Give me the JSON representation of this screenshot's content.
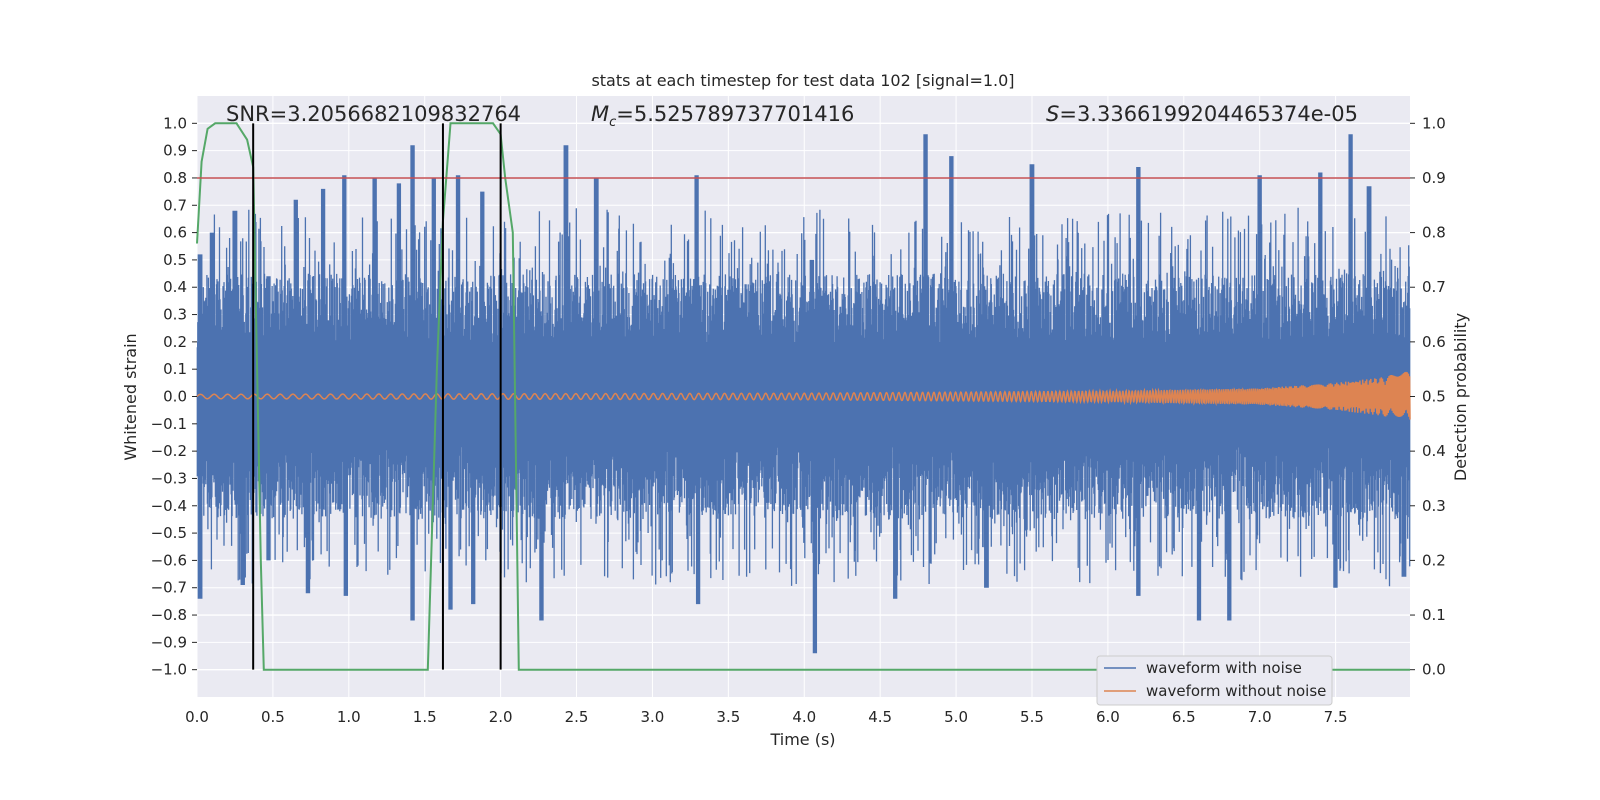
{
  "chart_data": {
    "type": "line",
    "title": "stats at each timestep for test data 102 [signal=1.0]",
    "xlabel": "Time (s)",
    "ylabel": "Whitened strain",
    "y2label": "Detection probability",
    "xlim": [
      0.0,
      7.99
    ],
    "ylim": [
      -1.1,
      1.1
    ],
    "y2lim": [
      -0.05,
      1.05
    ],
    "xticks": [
      "0.0",
      "0.5",
      "1.0",
      "1.5",
      "2.0",
      "2.5",
      "3.0",
      "3.5",
      "4.0",
      "4.5",
      "5.0",
      "5.5",
      "6.0",
      "6.5",
      "7.0",
      "7.5"
    ],
    "yticks": [
      "1.0",
      "0.9",
      "0.8",
      "0.7",
      "0.6",
      "0.5",
      "0.4",
      "0.3",
      "0.2",
      "0.1",
      "0.0",
      "−0.1",
      "−0.2",
      "−0.3",
      "−0.4",
      "−0.5",
      "−0.6",
      "−0.7",
      "−0.8",
      "−0.9",
      "−1.0"
    ],
    "y2ticks": [
      "1.0",
      "0.9",
      "0.8",
      "0.7",
      "0.6",
      "0.5",
      "0.4",
      "0.3",
      "0.2",
      "0.1",
      "0.0"
    ],
    "grid": true,
    "legend_position": "lower-right",
    "annotations": {
      "snr": "SNR=3.2056682109832764",
      "mc_symbol": "M",
      "mc_sub": "c",
      "mc_value": "=5.525789737701416",
      "s_symbol": "S",
      "s_value": "=3.3366199204465374e-05"
    },
    "series": [
      {
        "name": "waveform with noise",
        "color": "#4c72b0",
        "noise_envelope": {
          "t": [
            0.0,
            8.0
          ],
          "upper_typical": 0.45,
          "lower_typical": -0.45
        },
        "peaks_upper": [
          [
            0.02,
            0.52
          ],
          [
            0.1,
            0.6
          ],
          [
            0.25,
            0.68
          ],
          [
            0.47,
            0.44
          ],
          [
            0.65,
            0.72
          ],
          [
            0.83,
            0.76
          ],
          [
            0.97,
            0.81
          ],
          [
            1.17,
            0.8
          ],
          [
            1.33,
            0.78
          ],
          [
            1.42,
            0.92
          ],
          [
            1.56,
            0.8
          ],
          [
            1.72,
            0.81
          ],
          [
            1.88,
            0.75
          ],
          [
            2.43,
            0.92
          ],
          [
            2.63,
            0.8
          ],
          [
            3.29,
            0.81
          ],
          [
            4.05,
            0.5
          ],
          [
            4.8,
            0.96
          ],
          [
            4.97,
            0.88
          ],
          [
            5.5,
            0.85
          ],
          [
            6.2,
            0.84
          ],
          [
            7.0,
            0.81
          ],
          [
            7.4,
            0.82
          ],
          [
            7.6,
            0.96
          ],
          [
            7.72,
            0.77
          ]
        ],
        "peaks_lower": [
          [
            0.02,
            -0.74
          ],
          [
            0.3,
            -0.69
          ],
          [
            0.47,
            -0.6
          ],
          [
            0.73,
            -0.72
          ],
          [
            0.98,
            -0.73
          ],
          [
            1.42,
            -0.82
          ],
          [
            1.67,
            -0.78
          ],
          [
            1.82,
            -0.76
          ],
          [
            2.27,
            -0.82
          ],
          [
            3.3,
            -0.76
          ],
          [
            4.07,
            -0.94
          ],
          [
            4.6,
            -0.74
          ],
          [
            5.2,
            -0.7
          ],
          [
            6.2,
            -0.73
          ],
          [
            6.6,
            -0.82
          ],
          [
            6.8,
            -0.82
          ],
          [
            7.5,
            -0.7
          ],
          [
            7.95,
            -0.66
          ]
        ]
      },
      {
        "name": "waveform without noise",
        "color": "#dd8452",
        "amplitude": [
          [
            0.0,
            0.008
          ],
          [
            4.0,
            0.012
          ],
          [
            6.0,
            0.02
          ],
          [
            7.0,
            0.03
          ],
          [
            7.5,
            0.05
          ],
          [
            7.8,
            0.07
          ],
          [
            7.95,
            0.09
          ]
        ]
      },
      {
        "name": "detection probability",
        "color": "#55a868",
        "axis": "right",
        "x": [
          0.0,
          0.03,
          0.07,
          0.12,
          0.26,
          0.33,
          0.37,
          0.42,
          0.44,
          1.3,
          1.52,
          1.58,
          1.62,
          1.67,
          1.72,
          1.95,
          2.0,
          2.03,
          2.08,
          2.12,
          7.99
        ],
        "y": [
          0.78,
          0.93,
          0.99,
          1.0,
          1.0,
          0.97,
          0.92,
          0.2,
          0.0,
          0.0,
          0.0,
          0.55,
          0.82,
          1.0,
          1.0,
          1.0,
          0.98,
          0.9,
          0.8,
          0.0,
          0.0
        ]
      }
    ],
    "threshold": {
      "value": 0.9,
      "axis": "right",
      "color": "#c44e52"
    },
    "vlines": [
      0.37,
      1.62,
      2.0
    ]
  }
}
